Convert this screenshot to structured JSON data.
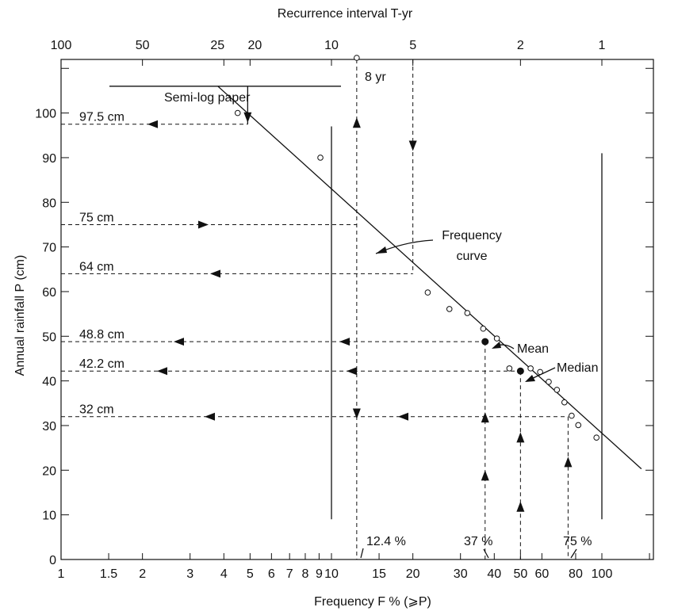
{
  "chart_data": {
    "type": "scatter",
    "top_axis": {
      "title": "Recurrence interval T-yr",
      "ticks": [
        {
          "value": 100,
          "label": "100"
        },
        {
          "value": 50,
          "label": "50"
        },
        {
          "value": 25,
          "label": "25"
        },
        {
          "value": 20,
          "label": "20"
        },
        {
          "value": 10,
          "label": "10"
        },
        {
          "value": 5,
          "label": "5"
        },
        {
          "value": 2,
          "label": "2"
        },
        {
          "value": 1,
          "label": "1"
        }
      ]
    },
    "x_axis": {
      "title": "Frequency F % (⩾P)",
      "scale": "log",
      "range": [
        1,
        190
      ],
      "ticks": [
        {
          "value": 1,
          "label": "1"
        },
        {
          "value": 1.5,
          "label": "1.5"
        },
        {
          "value": 2,
          "label": "2"
        },
        {
          "value": 3,
          "label": "3"
        },
        {
          "value": 4,
          "label": "4"
        },
        {
          "value": 5,
          "label": "5"
        },
        {
          "value": 6,
          "label": "6"
        },
        {
          "value": 7,
          "label": "7"
        },
        {
          "value": 8,
          "label": "8"
        },
        {
          "value": 9,
          "label": "9"
        },
        {
          "value": 10,
          "label": "10"
        },
        {
          "value": 15,
          "label": "15"
        },
        {
          "value": 20,
          "label": "20"
        },
        {
          "value": 30,
          "label": "30"
        },
        {
          "value": 40,
          "label": "40"
        },
        {
          "value": 50,
          "label": "50"
        },
        {
          "value": 60,
          "label": "60"
        },
        {
          "value": 80,
          "label": "80"
        },
        {
          "value": 100,
          "label": "100"
        }
      ]
    },
    "y_axis": {
      "title": "Annual rainfall P (cm)",
      "range": [
        0,
        112
      ],
      "ticks": [
        {
          "value": 0,
          "label": "0"
        },
        {
          "value": 10,
          "label": "10"
        },
        {
          "value": 20,
          "label": "20"
        },
        {
          "value": 30,
          "label": "30"
        },
        {
          "value": 40,
          "label": "40"
        },
        {
          "value": 50,
          "label": "50"
        },
        {
          "value": 60,
          "label": "60"
        },
        {
          "value": 70,
          "label": "70"
        },
        {
          "value": 80,
          "label": "80"
        },
        {
          "value": 90,
          "label": "90"
        },
        {
          "value": 100,
          "label": "100"
        }
      ]
    },
    "observations": [
      {
        "F": 4.5,
        "P": 100
      },
      {
        "F": 9.1,
        "P": 90
      },
      {
        "F": 22.7,
        "P": 59.8
      },
      {
        "F": 27.3,
        "P": 56.1
      },
      {
        "F": 31.8,
        "P": 55.2
      },
      {
        "F": 36.4,
        "P": 51.7
      },
      {
        "F": 40.9,
        "P": 49.5
      },
      {
        "F": 45.5,
        "P": 42.8
      },
      {
        "F": 54.5,
        "P": 42.8
      },
      {
        "F": 59.1,
        "P": 42
      },
      {
        "F": 63.6,
        "P": 39.8
      },
      {
        "F": 68.2,
        "P": 38
      },
      {
        "F": 72.7,
        "P": 35.2
      },
      {
        "F": 77.3,
        "P": 32.2
      },
      {
        "F": 81.8,
        "P": 30.1
      },
      {
        "F": 95.5,
        "P": 27.3
      }
    ],
    "mean_point": {
      "F": 37,
      "P": 48.8
    },
    "median_point": {
      "F": 50,
      "P": 42.2
    },
    "frequency_curve": [
      {
        "F": 3.8,
        "P": 106
      },
      {
        "F": 140,
        "P": 20.3
      }
    ],
    "annotations": {
      "semi_log_paper": "Semi-log paper",
      "frequency_curve": "Frequency\ncurve",
      "mean": "Mean",
      "median": "Median",
      "eight_year": "8 yr",
      "p_975": "97.5 cm",
      "p_75": "75 cm",
      "p_64": "64 cm",
      "p_488": "48.8 cm",
      "p_422": "42.2 cm",
      "p_32": "32 cm",
      "f_124": "12.4 %",
      "f_37": "37 %",
      "f_75": "75 %"
    },
    "grid": false,
    "legend": "none"
  }
}
